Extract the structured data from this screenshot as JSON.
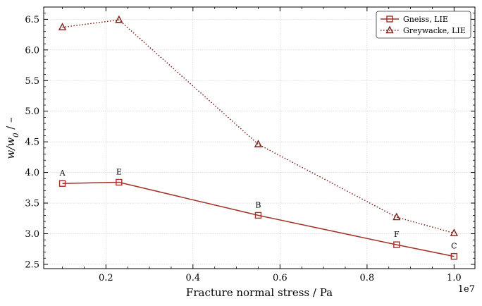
{
  "chart_data": {
    "type": "line",
    "title": "",
    "xlabel": "Fracture normal stress / Pa",
    "ylabel": "w/w₀ / –",
    "x_offset_text": "1e7",
    "x_tick_labels": [
      "0.2",
      "0.4",
      "0.6",
      "0.8",
      "1.0"
    ],
    "x_ticks": [
      0.2,
      0.4,
      0.6,
      0.8,
      1.0
    ],
    "y_tick_labels": [
      "2.5",
      "3.0",
      "3.5",
      "4.0",
      "4.5",
      "5.0",
      "5.5",
      "6.0",
      "6.5"
    ],
    "y_ticks": [
      2.5,
      3.0,
      3.5,
      4.0,
      4.5,
      5.0,
      5.5,
      6.0,
      6.5
    ],
    "xlim": [
      0.057,
      1.048
    ],
    "ylim": [
      2.43,
      6.7
    ],
    "x_scale": "linear",
    "x_units_multiplier": "1e7",
    "grid": true,
    "legend_position": "top-right",
    "series": [
      {
        "name": "Gneiss, LIE",
        "color": "#a33226",
        "line_style": "solid",
        "marker": "square",
        "x": [
          0.1,
          0.23,
          0.55,
          0.868,
          1.0
        ],
        "y": [
          3.82,
          3.84,
          3.3,
          2.82,
          2.63
        ],
        "point_labels": [
          "A",
          "E",
          "B",
          "F",
          "C"
        ]
      },
      {
        "name": "Greywacke, LIE",
        "color": "#7a2118",
        "line_style": "dotted",
        "marker": "triangle",
        "x": [
          0.1,
          0.23,
          0.55,
          0.868,
          1.0
        ],
        "y": [
          6.37,
          6.49,
          4.46,
          3.27,
          3.01
        ]
      }
    ]
  }
}
